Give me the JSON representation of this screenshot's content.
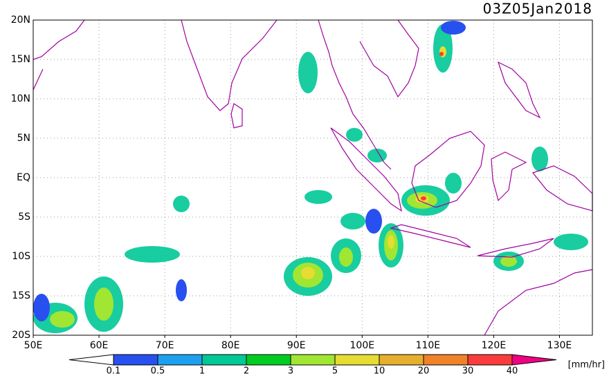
{
  "title": "03Z05Jan2018",
  "lat_labels": [
    "20N",
    "15N",
    "10N",
    "5N",
    "EQ",
    "5S",
    "10S",
    "15S",
    "20S"
  ],
  "lon_labels": [
    "50E",
    "60E",
    "70E",
    "80E",
    "90E",
    "100E",
    "110E",
    "120E",
    "130E"
  ],
  "colorbar": {
    "levels": [
      0.1,
      0.5,
      1,
      2,
      3,
      5,
      10,
      20,
      30,
      40
    ],
    "colors": [
      "#ffffff",
      "#2850f0",
      "#1ea0f0",
      "#00c896",
      "#00cc22",
      "#a0e632",
      "#e6dc32",
      "#e6af2d",
      "#f08228",
      "#fa3c3c",
      "#f00082"
    ],
    "unit": "[mm/hr]"
  }
}
